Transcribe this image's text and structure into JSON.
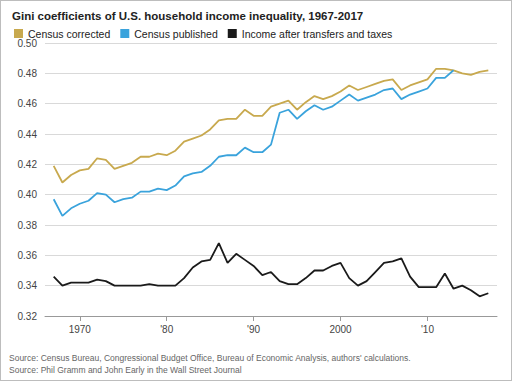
{
  "chart_data": {
    "type": "line",
    "title": "Gini coefficients of U.S. household income inequality, 1967-2017",
    "annotations": [
      "Source: Census Bureau, Congressional Budget Office, Bureau of Economic Analysis, authors' calculations.",
      "Source: Phil Gramm and John Early in the Wall Street Journal"
    ],
    "x": [
      1967,
      1968,
      1969,
      1970,
      1971,
      1972,
      1973,
      1974,
      1975,
      1976,
      1977,
      1978,
      1979,
      1980,
      1981,
      1982,
      1983,
      1984,
      1985,
      1986,
      1987,
      1988,
      1989,
      1990,
      1991,
      1992,
      1993,
      1994,
      1995,
      1996,
      1997,
      1998,
      1999,
      2000,
      2001,
      2002,
      2003,
      2004,
      2005,
      2006,
      2007,
      2008,
      2009,
      2010,
      2011,
      2012,
      2013,
      2014,
      2015,
      2016,
      2017
    ],
    "series": [
      {
        "name": "Census corrected",
        "color": "#c8a94e",
        "values": [
          0.419,
          0.408,
          0.413,
          0.416,
          0.417,
          0.424,
          0.423,
          0.417,
          0.419,
          0.421,
          0.425,
          0.425,
          0.427,
          0.426,
          0.429,
          0.435,
          0.437,
          0.439,
          0.443,
          0.449,
          0.45,
          0.45,
          0.456,
          0.452,
          0.452,
          0.458,
          0.46,
          0.462,
          0.456,
          0.461,
          0.465,
          0.463,
          0.465,
          0.468,
          0.472,
          0.469,
          0.471,
          0.473,
          0.475,
          0.476,
          0.469,
          0.472,
          0.474,
          0.476,
          0.483,
          0.483,
          0.482,
          0.48,
          0.479,
          0.481,
          0.482
        ]
      },
      {
        "name": "Census published",
        "color": "#3aa3dc",
        "values": [
          0.397,
          0.386,
          0.391,
          0.394,
          0.396,
          0.401,
          0.4,
          0.395,
          0.397,
          0.398,
          0.402,
          0.402,
          0.404,
          0.403,
          0.406,
          0.412,
          0.414,
          0.415,
          0.419,
          0.425,
          0.426,
          0.426,
          0.431,
          0.428,
          0.428,
          0.433,
          0.454,
          0.456,
          0.45,
          0.455,
          0.459,
          0.456,
          0.458,
          0.462,
          0.466,
          0.462,
          0.464,
          0.466,
          0.469,
          0.47,
          0.463,
          0.466,
          0.468,
          0.47,
          0.477,
          0.477,
          0.482,
          null,
          null,
          null,
          null
        ]
      },
      {
        "name": "Income after transfers and taxes",
        "color": "#1a1a1a",
        "values": [
          0.346,
          0.34,
          0.342,
          0.342,
          0.342,
          0.344,
          0.343,
          0.34,
          0.34,
          0.34,
          0.34,
          0.341,
          0.34,
          0.34,
          0.34,
          0.345,
          0.352,
          0.356,
          0.357,
          0.368,
          0.355,
          0.361,
          0.357,
          0.353,
          0.347,
          0.349,
          0.343,
          0.341,
          0.341,
          0.345,
          0.35,
          0.35,
          0.353,
          0.355,
          0.345,
          0.34,
          0.343,
          0.349,
          0.355,
          0.356,
          0.358,
          0.346,
          0.339,
          0.339,
          0.339,
          0.348,
          0.338,
          0.34,
          0.337,
          0.333,
          0.335
        ]
      }
    ],
    "xlim": [
      1966,
      2018
    ],
    "xticks": [
      1970,
      {
        "value": 1980,
        "label": "'80"
      },
      {
        "value": 1990,
        "label": "'90"
      },
      2000,
      {
        "value": 2010,
        "label": "'10"
      }
    ],
    "ylim": [
      0.32,
      0.5
    ],
    "yticks": [
      0.32,
      0.34,
      0.36,
      0.38,
      {
        "value": 0.4,
        "label": "0.40"
      },
      0.42,
      0.44,
      0.46,
      0.48,
      {
        "value": 0.5,
        "label": "0.50"
      }
    ],
    "grid": true,
    "legend": "top-left"
  }
}
